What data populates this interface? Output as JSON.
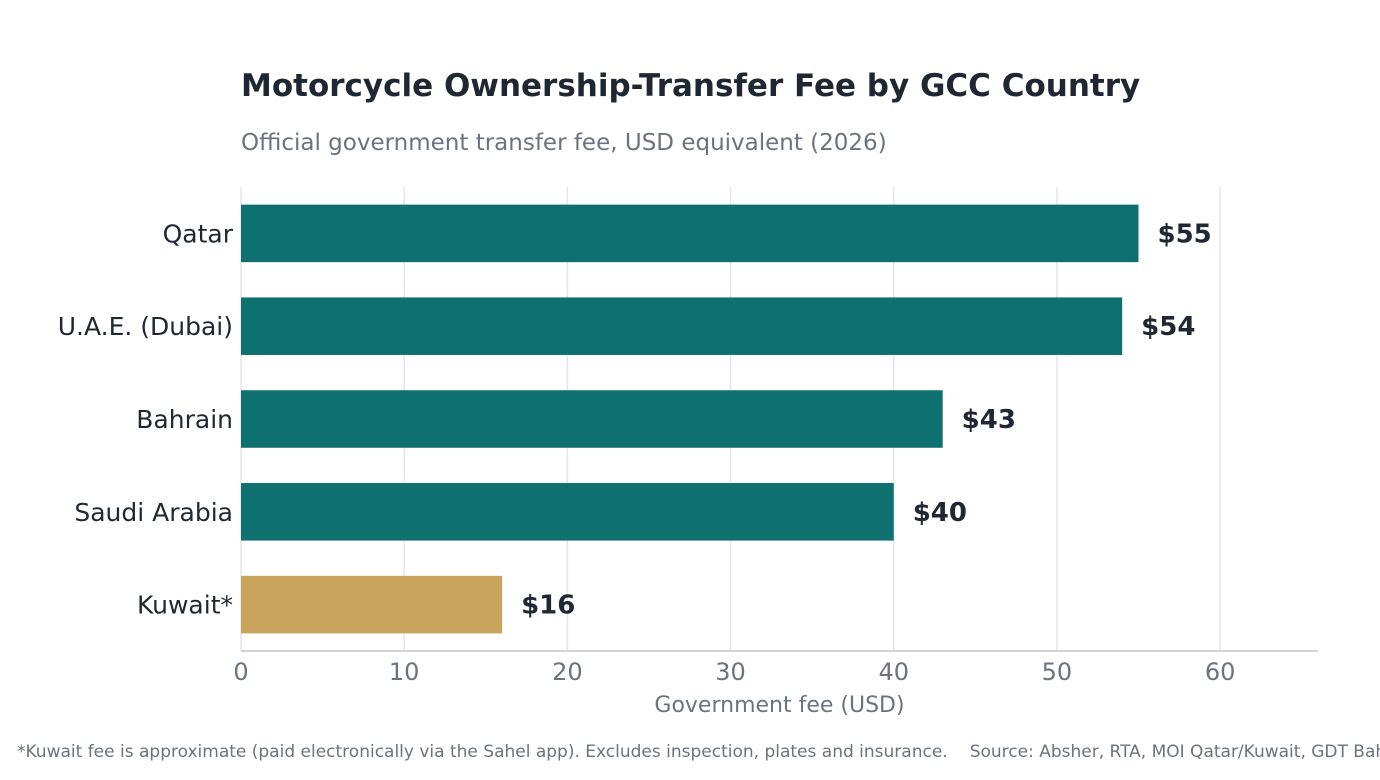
{
  "chart_data": {
    "type": "bar",
    "orientation": "horizontal",
    "title": "Motorcycle Ownership-Transfer Fee by GCC Country",
    "subtitle": "Official government transfer fee, USD equivalent (2026)",
    "xlabel": "Government fee (USD)",
    "ylabel": "",
    "xlim": [
      0,
      66
    ],
    "xticks": [
      0,
      10,
      20,
      30,
      40,
      50,
      60
    ],
    "grid": true,
    "categories": [
      "Qatar",
      "U.A.E. (Dubai)",
      "Bahrain",
      "Saudi Arabia",
      "Kuwait*"
    ],
    "values": [
      55,
      54,
      43,
      40,
      16
    ],
    "value_labels": [
      "$55",
      "$54",
      "$43",
      "$40",
      "$16"
    ],
    "bar_colors": [
      "#0f716f",
      "#0f716f",
      "#0f716f",
      "#0f716f",
      "#c8a45c"
    ]
  },
  "footnote": {
    "note": "*Kuwait fee is approximate (paid electronically via the Sahel app). Excludes inspection, plates and insurance.",
    "source": "Source: Absher, RTA, MOI Qatar/Kuwait, GDT Bahrain"
  },
  "colors": {
    "text_dark": "#1f2733",
    "text_muted": "#6b7380",
    "grid": "#e3e6ea",
    "axis": "#d0d4d9"
  }
}
